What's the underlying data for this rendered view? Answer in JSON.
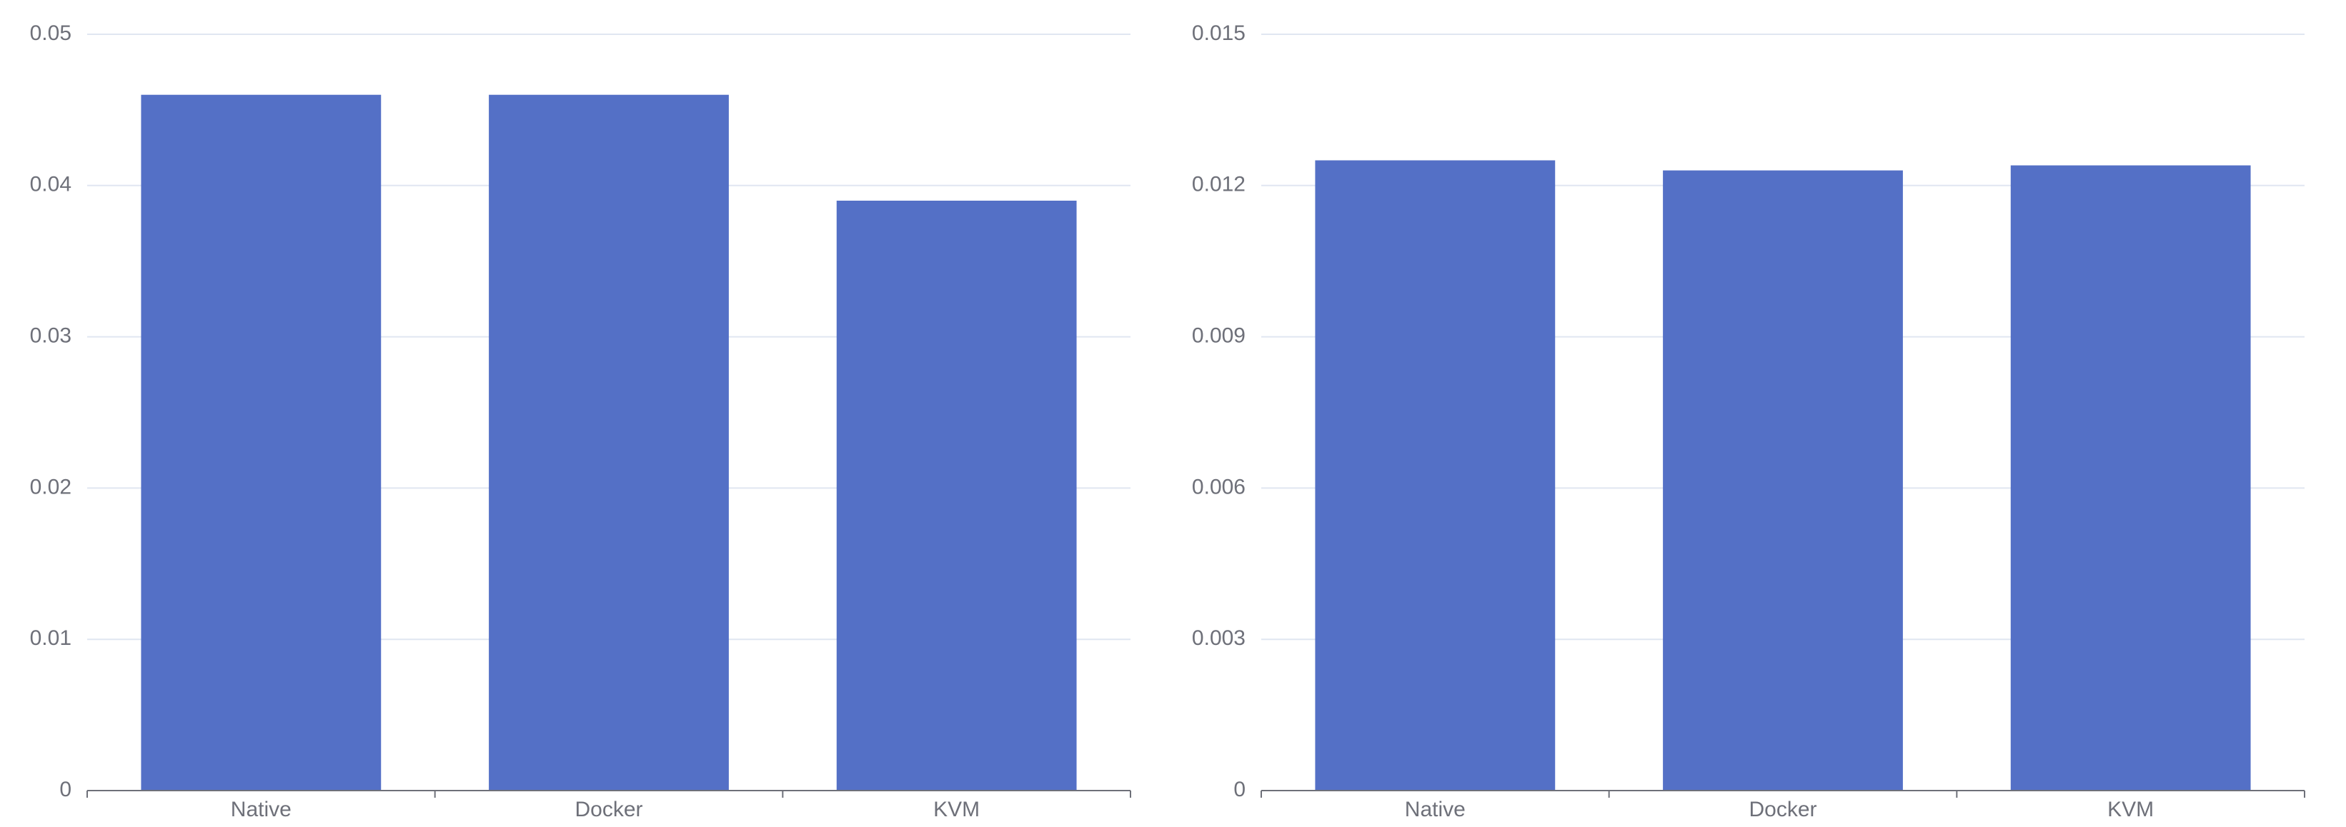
{
  "chart_data": [
    {
      "type": "bar",
      "categories": [
        "Native",
        "Docker",
        "KVM"
      ],
      "values": [
        0.046,
        0.046,
        0.039
      ],
      "ylim": [
        0,
        0.05
      ],
      "yticks": [
        "0",
        "0.01",
        "0.02",
        "0.03",
        "0.04",
        "0.05"
      ],
      "grid": true,
      "color": "#5470c6"
    },
    {
      "type": "bar",
      "categories": [
        "Native",
        "Docker",
        "KVM"
      ],
      "values": [
        0.0125,
        0.0123,
        0.0124
      ],
      "ylim": [
        0,
        0.015
      ],
      "yticks": [
        "0",
        "0.003",
        "0.006",
        "0.009",
        "0.012",
        "0.015"
      ],
      "grid": true,
      "color": "#5470c6"
    }
  ]
}
